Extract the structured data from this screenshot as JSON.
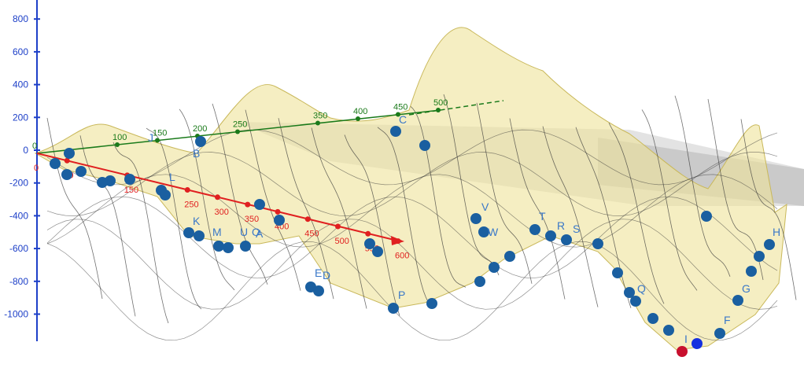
{
  "chart_data": {
    "type": "surface-3d",
    "title": "",
    "z_axis": {
      "ticks": [
        800,
        600,
        400,
        200,
        0,
        -200,
        -400,
        -600,
        -800,
        -1000
      ],
      "color": "#1e40c8"
    },
    "x_axis": {
      "ticks": [
        0,
        50,
        150,
        250,
        300,
        350,
        400,
        450,
        500,
        550,
        600
      ],
      "range": [
        0,
        600
      ],
      "color": "#e02020"
    },
    "y_axis": {
      "ticks": [
        0,
        100,
        150,
        200,
        250,
        350,
        400,
        450,
        500
      ],
      "range": [
        0,
        500
      ],
      "color": "#1a7a1a"
    },
    "colors": {
      "surface_fill": "#eee39a",
      "surface_edge": "#c9b85a",
      "mesh": "#333333",
      "point": "#1a5fa0",
      "point_label": "#3a78c8",
      "plane": "#b0b0b0",
      "highlight_red": "#c8102e",
      "highlight_blue": "#1530e0"
    },
    "points": [
      {
        "label": "K"
      },
      {
        "label": "L"
      },
      {
        "label": "J"
      },
      {
        "label": "B"
      },
      {
        "label": "C"
      },
      {
        "label": "D"
      },
      {
        "label": "E"
      },
      {
        "label": "F"
      },
      {
        "label": "G"
      },
      {
        "label": "H"
      },
      {
        "label": "I"
      },
      {
        "label": "M"
      },
      {
        "label": "O"
      },
      {
        "label": "P"
      },
      {
        "label": "Q"
      },
      {
        "label": "R"
      },
      {
        "label": "S"
      },
      {
        "label": "T"
      },
      {
        "label": "U"
      },
      {
        "label": "V"
      },
      {
        "label": "W"
      },
      {
        "label": "A"
      }
    ]
  }
}
